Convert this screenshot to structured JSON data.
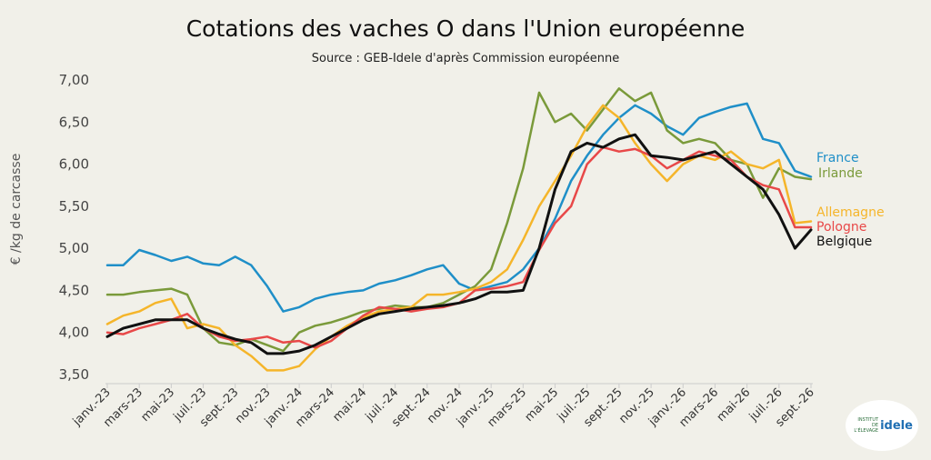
{
  "chart_data": {
    "type": "line",
    "title": "Cotations des vaches O dans l'Union européenne",
    "subtitle": "Source : GEB-Idele d'après Commission européenne",
    "ylabel": "€ /kg de carcasse",
    "xlabel": "",
    "ylim": [
      3.5,
      7.0
    ],
    "yticks": [
      "7,00",
      "6,50",
      "6,00",
      "5,50",
      "5,00",
      "4,50",
      "4,00",
      "3,50"
    ],
    "ytick_values": [
      7.0,
      6.5,
      6.0,
      5.5,
      5.0,
      4.5,
      4.0,
      3.5
    ],
    "xlim": [
      "2023-01",
      "2026-09"
    ],
    "x": [
      "2023-01",
      "2023-02",
      "2023-03",
      "2023-04",
      "2023-05",
      "2023-06",
      "2023-07",
      "2023-08",
      "2023-09",
      "2023-10",
      "2023-11",
      "2023-12",
      "2024-01",
      "2024-02",
      "2024-03",
      "2024-04",
      "2024-05",
      "2024-06",
      "2024-07",
      "2024-08",
      "2024-09",
      "2024-10",
      "2024-11",
      "2024-12",
      "2025-01",
      "2025-02",
      "2025-03",
      "2025-04",
      "2025-05",
      "2025-06",
      "2025-07",
      "2025-08",
      "2025-09",
      "2025-10",
      "2025-11",
      "2025-12",
      "2026-01",
      "2026-02",
      "2026-03",
      "2026-04",
      "2026-05",
      "2026-06",
      "2026-07",
      "2026-08",
      "2026-09"
    ],
    "xticks": [
      "janv.-23",
      "mars-23",
      "mai-23",
      "juil.-23",
      "sept.-23",
      "nov.-23",
      "janv.-24",
      "mars-24",
      "mai-24",
      "juil.-24",
      "sept.-24",
      "nov.-24",
      "janv.-25",
      "mars-25",
      "mai-25",
      "juil.-25",
      "sept.-25",
      "nov.-25",
      "janv.-26",
      "mars-26",
      "mai-26",
      "juil.-26",
      "sept.-26"
    ],
    "xtick_dates": [
      "2023-01",
      "2023-03",
      "2023-05",
      "2023-07",
      "2023-09",
      "2023-11",
      "2024-01",
      "2024-03",
      "2024-05",
      "2024-07",
      "2024-09",
      "2024-11",
      "2025-01",
      "2025-03",
      "2025-05",
      "2025-07",
      "2025-09",
      "2025-11",
      "2026-01",
      "2026-03",
      "2026-05",
      "2026-07",
      "2026-09"
    ],
    "grid": false,
    "legend": "inline-right",
    "series": [
      {
        "name": "France",
        "color": "#1f8fc8",
        "values": [
          4.8,
          4.8,
          4.98,
          4.92,
          4.85,
          4.9,
          4.82,
          4.8,
          4.9,
          4.8,
          4.55,
          4.25,
          4.3,
          4.4,
          4.45,
          4.48,
          4.5,
          4.58,
          4.62,
          4.68,
          4.75,
          4.8,
          4.58,
          4.5,
          4.55,
          4.6,
          4.75,
          5.0,
          5.35,
          5.8,
          6.1,
          6.35,
          6.55,
          6.7,
          6.6,
          6.45,
          6.35,
          6.55,
          6.62,
          6.68,
          6.72,
          6.3,
          6.25,
          5.92,
          5.85
        ]
      },
      {
        "name": "Irlande",
        "color": "#7a9a3a",
        "values": [
          4.45,
          4.45,
          4.48,
          4.5,
          4.52,
          4.45,
          4.05,
          3.88,
          3.85,
          3.92,
          3.85,
          3.78,
          4.0,
          4.08,
          4.12,
          4.18,
          4.25,
          4.28,
          4.32,
          4.3,
          4.3,
          4.35,
          4.45,
          4.55,
          4.75,
          5.3,
          5.95,
          6.85,
          6.5,
          6.6,
          6.4,
          6.65,
          6.9,
          6.75,
          6.85,
          6.4,
          6.25,
          6.3,
          6.25,
          6.05,
          6.0,
          5.6,
          5.95,
          5.85,
          5.82
        ]
      },
      {
        "name": "Allemagne",
        "color": "#f5b52a",
        "values": [
          4.1,
          4.2,
          4.25,
          4.35,
          4.4,
          4.05,
          4.1,
          4.05,
          3.85,
          3.72,
          3.55,
          3.55,
          3.6,
          3.8,
          3.95,
          4.08,
          4.18,
          4.25,
          4.28,
          4.3,
          4.45,
          4.45,
          4.48,
          4.52,
          4.6,
          4.75,
          5.1,
          5.5,
          5.8,
          6.1,
          6.45,
          6.7,
          6.55,
          6.25,
          6.0,
          5.8,
          6.0,
          6.1,
          6.05,
          6.15,
          6.0,
          5.95,
          6.05,
          5.3,
          5.32
        ]
      },
      {
        "name": "Pologne",
        "color": "#e84848",
        "values": [
          4.0,
          3.98,
          4.05,
          4.1,
          4.15,
          4.22,
          4.05,
          3.95,
          3.9,
          3.92,
          3.95,
          3.88,
          3.9,
          3.82,
          3.9,
          4.05,
          4.2,
          4.3,
          4.28,
          4.25,
          4.28,
          4.3,
          4.35,
          4.5,
          4.52,
          4.55,
          4.6,
          4.98,
          5.3,
          5.5,
          6.0,
          6.2,
          6.15,
          6.18,
          6.1,
          5.95,
          6.05,
          6.15,
          6.1,
          6.05,
          5.85,
          5.75,
          5.7,
          5.25,
          5.25
        ]
      },
      {
        "name": "Belgique",
        "color": "#111111",
        "values": [
          3.95,
          4.05,
          4.1,
          4.15,
          4.15,
          4.15,
          4.05,
          3.98,
          3.92,
          3.88,
          3.75,
          3.75,
          3.78,
          3.85,
          3.95,
          4.05,
          4.15,
          4.22,
          4.25,
          4.28,
          4.3,
          4.32,
          4.35,
          4.4,
          4.48,
          4.48,
          4.5,
          5.0,
          5.7,
          6.15,
          6.25,
          6.2,
          6.3,
          6.35,
          6.1,
          6.08,
          6.05,
          6.1,
          6.15,
          6.0,
          5.85,
          5.7,
          5.4,
          5.0,
          5.22
        ]
      }
    ]
  },
  "logo": {
    "left_text": "INSTITUT DE L'ÉLEVAGE",
    "word": "idele"
  }
}
